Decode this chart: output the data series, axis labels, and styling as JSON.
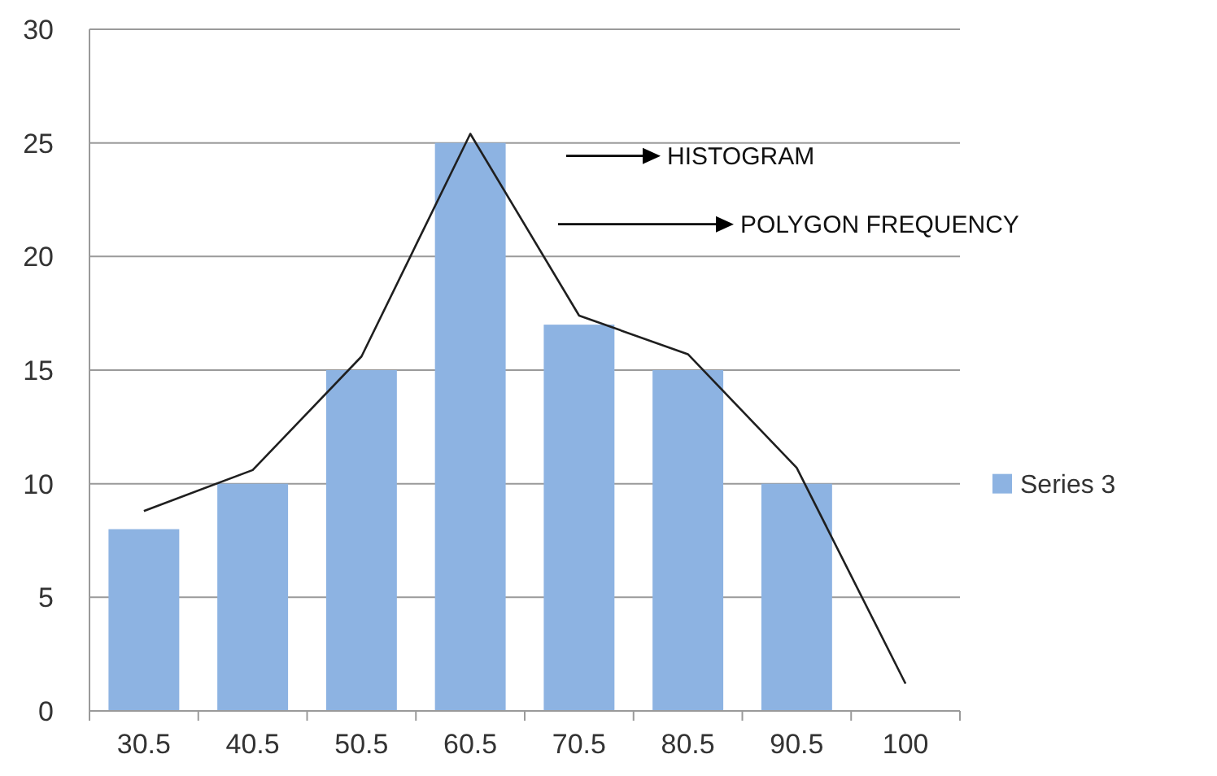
{
  "chart_data": {
    "type": "bar",
    "categories": [
      "30.5",
      "40.5",
      "50.5",
      "60.5",
      "70.5",
      "80.5",
      "90.5",
      "100"
    ],
    "series": [
      {
        "name": "Series 3",
        "color": "#8db3e2",
        "values": [
          8,
          10,
          15,
          25,
          17,
          15,
          10,
          null
        ]
      },
      {
        "type": "line",
        "color": "#1f1f1f",
        "values": [
          8.8,
          10.6,
          15.6,
          25.4,
          17.4,
          15.7,
          10.7,
          1.2
        ]
      }
    ],
    "ylim": [
      0,
      30
    ],
    "yticks": [
      0,
      5,
      10,
      15,
      20,
      25,
      30
    ],
    "grid": "y",
    "legend": "right",
    "marker": "none",
    "line_style": "solid",
    "annotations": [
      "HISTOGRAM",
      "POLYGON FREQUENCY"
    ]
  }
}
